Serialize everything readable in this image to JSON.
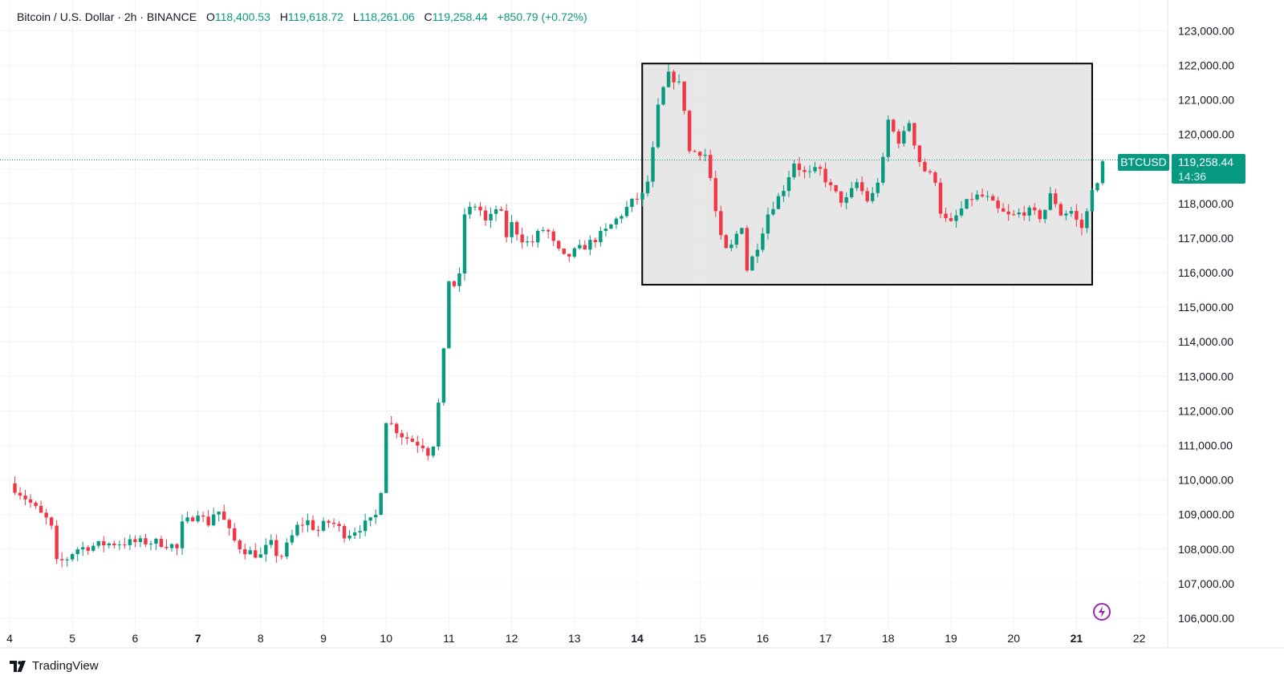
{
  "header": {
    "symbol": "Bitcoin / U.S. Dollar · 2h · BINANCE",
    "open_label": "O",
    "open": "118,400.53",
    "high_label": "H",
    "high": "119,618.72",
    "low_label": "L",
    "low": "118,261.06",
    "close_label": "C",
    "close": "119,258.44",
    "change": "+850.79 (+0.72%)"
  },
  "price_tag": {
    "ticker": "BTCUSD",
    "price": "119,258.44",
    "countdown": "14:36"
  },
  "brand": {
    "name": "TradingView"
  },
  "colors": {
    "up": "#089981",
    "down": "#f23645",
    "grid": "#f0f3fa",
    "box_fill": "#e3e3e3",
    "box_border": "#000000"
  },
  "chart_data": {
    "type": "candlestick",
    "title": "Bitcoin / U.S. Dollar · 2h · BINANCE",
    "ylim": [
      105800,
      123200
    ],
    "y_ticks": [
      "123,000.00",
      "122,000.00",
      "121,000.00",
      "120,000.00",
      "118,000.00",
      "117,000.00",
      "116,000.00",
      "115,000.00",
      "114,000.00",
      "113,000.00",
      "112,000.00",
      "111,000.00",
      "110,000.00",
      "109,000.00",
      "108,000.00",
      "107,000.00",
      "106,000.00"
    ],
    "y_tick_values": [
      123000,
      122000,
      121000,
      120000,
      118000,
      117000,
      116000,
      115000,
      114000,
      113000,
      112000,
      111000,
      110000,
      109000,
      108000,
      107000,
      106000
    ],
    "x_ticks": [
      {
        "day": 4,
        "label": "4",
        "bold": false
      },
      {
        "day": 5,
        "label": "5",
        "bold": false
      },
      {
        "day": 6,
        "label": "6",
        "bold": false
      },
      {
        "day": 7,
        "label": "7",
        "bold": true
      },
      {
        "day": 8,
        "label": "8",
        "bold": false
      },
      {
        "day": 9,
        "label": "9",
        "bold": false
      },
      {
        "day": 10,
        "label": "10",
        "bold": false
      },
      {
        "day": 11,
        "label": "11",
        "bold": false
      },
      {
        "day": 12,
        "label": "12",
        "bold": false
      },
      {
        "day": 13,
        "label": "13",
        "bold": false
      },
      {
        "day": 14,
        "label": "14",
        "bold": true
      },
      {
        "day": 15,
        "label": "15",
        "bold": false
      },
      {
        "day": 16,
        "label": "16",
        "bold": false
      },
      {
        "day": 17,
        "label": "17",
        "bold": false
      },
      {
        "day": 18,
        "label": "18",
        "bold": false
      },
      {
        "day": 19,
        "label": "19",
        "bold": false
      },
      {
        "day": 20,
        "label": "20",
        "bold": false
      },
      {
        "day": 21,
        "label": "21",
        "bold": true
      },
      {
        "day": 22,
        "label": "22",
        "bold": false
      }
    ],
    "last_price": 119258.44,
    "range_box": {
      "day_start": 14.08,
      "day_end": 21.25,
      "price_low": 115650,
      "price_high": 122050
    },
    "keypoints": [
      [
        4.0,
        109900
      ],
      [
        4.3,
        109400
      ],
      [
        4.55,
        108900
      ],
      [
        4.65,
        108800
      ],
      [
        4.75,
        107600
      ],
      [
        4.9,
        107700
      ],
      [
        5.05,
        108000
      ],
      [
        5.5,
        108150
      ],
      [
        6.0,
        108200
      ],
      [
        6.35,
        108200
      ],
      [
        6.6,
        108100
      ],
      [
        6.7,
        107950
      ],
      [
        6.75,
        108700
      ],
      [
        6.9,
        108900
      ],
      [
        7.0,
        109100
      ],
      [
        7.15,
        108700
      ],
      [
        7.3,
        109200
      ],
      [
        7.45,
        108700
      ],
      [
        7.55,
        108300
      ],
      [
        7.7,
        108000
      ],
      [
        7.85,
        107900
      ],
      [
        8.0,
        107800
      ],
      [
        8.15,
        108200
      ],
      [
        8.3,
        107700
      ],
      [
        8.45,
        108200
      ],
      [
        8.6,
        108700
      ],
      [
        8.75,
        108800
      ],
      [
        8.9,
        108500
      ],
      [
        9.05,
        108800
      ],
      [
        9.2,
        108700
      ],
      [
        9.35,
        108400
      ],
      [
        9.55,
        108600
      ],
      [
        9.75,
        108800
      ],
      [
        9.9,
        109100
      ],
      [
        9.97,
        111800
      ],
      [
        10.25,
        111300
      ],
      [
        10.45,
        111100
      ],
      [
        10.6,
        111000
      ],
      [
        10.7,
        110700
      ],
      [
        10.8,
        111400
      ],
      [
        10.9,
        113800
      ],
      [
        10.97,
        113300
      ],
      [
        11.0,
        115800
      ],
      [
        11.15,
        115500
      ],
      [
        11.25,
        117700
      ],
      [
        11.45,
        118000
      ],
      [
        11.6,
        117400
      ],
      [
        11.8,
        118000
      ],
      [
        11.9,
        117000
      ],
      [
        12.0,
        117400
      ],
      [
        12.15,
        117000
      ],
      [
        12.3,
        116800
      ],
      [
        12.45,
        117200
      ],
      [
        12.55,
        117300
      ],
      [
        12.7,
        116700
      ],
      [
        12.85,
        116400
      ],
      [
        13.0,
        116600
      ],
      [
        13.2,
        116800
      ],
      [
        13.35,
        117000
      ],
      [
        13.5,
        117200
      ],
      [
        13.65,
        117500
      ],
      [
        13.8,
        117800
      ],
      [
        13.95,
        118100
      ],
      [
        14.08,
        118200
      ],
      [
        14.2,
        118800
      ],
      [
        14.35,
        121000
      ],
      [
        14.5,
        121700
      ],
      [
        14.6,
        121600
      ],
      [
        14.72,
        121300
      ],
      [
        14.82,
        119500
      ],
      [
        15.0,
        119500
      ],
      [
        15.1,
        119400
      ],
      [
        15.2,
        118400
      ],
      [
        15.3,
        117100
      ],
      [
        15.45,
        116500
      ],
      [
        15.55,
        117000
      ],
      [
        15.7,
        117500
      ],
      [
        15.75,
        116100
      ],
      [
        15.9,
        116700
      ],
      [
        16.1,
        117800
      ],
      [
        16.3,
        118300
      ],
      [
        16.5,
        119200
      ],
      [
        16.7,
        118800
      ],
      [
        16.9,
        119000
      ],
      [
        17.1,
        118400
      ],
      [
        17.3,
        118000
      ],
      [
        17.5,
        118600
      ],
      [
        17.7,
        118000
      ],
      [
        17.9,
        119000
      ],
      [
        18.0,
        120400
      ],
      [
        18.15,
        119800
      ],
      [
        18.3,
        120100
      ],
      [
        18.35,
        120500
      ],
      [
        18.45,
        119400
      ],
      [
        18.6,
        118900
      ],
      [
        18.75,
        118700
      ],
      [
        18.85,
        117600
      ],
      [
        19.0,
        117400
      ],
      [
        19.15,
        117800
      ],
      [
        19.35,
        118200
      ],
      [
        19.55,
        118200
      ],
      [
        19.75,
        117800
      ],
      [
        19.95,
        117600
      ],
      [
        20.2,
        117800
      ],
      [
        20.45,
        117600
      ],
      [
        20.6,
        118300
      ],
      [
        20.75,
        117700
      ],
      [
        20.95,
        117800
      ],
      [
        21.05,
        117200
      ],
      [
        21.15,
        117500
      ],
      [
        21.22,
        118500
      ],
      [
        21.35,
        118500
      ],
      [
        21.42,
        119258
      ]
    ]
  }
}
